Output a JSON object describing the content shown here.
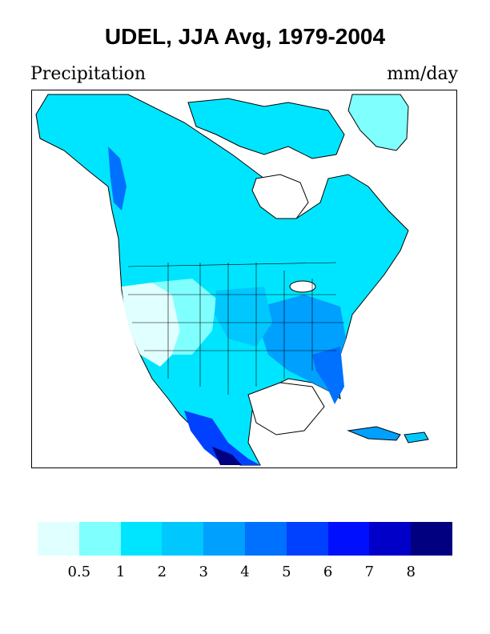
{
  "title": "UDEL, JJA Avg, 1979-2004",
  "variable": "Precipitation",
  "units": "mm/day",
  "colorbar": {
    "colors": [
      "#e0ffff",
      "#80ffff",
      "#00e5ff",
      "#00c8ff",
      "#00a0ff",
      "#0070ff",
      "#0040ff",
      "#0010ff",
      "#0000c8",
      "#000080"
    ],
    "tick_labels": [
      "0.5",
      "1",
      "2",
      "3",
      "4",
      "5",
      "6",
      "7",
      "8"
    ]
  },
  "map": {
    "region": "North America",
    "colors": {
      "light": "#80ffff",
      "medium": "#00e5ff",
      "mid": "#00c8ff",
      "deep": "#00a0ff",
      "deeper": "#0070ff",
      "deepest": "#0040ff",
      "darkest": "#000080",
      "pale": "#e0ffff"
    }
  }
}
